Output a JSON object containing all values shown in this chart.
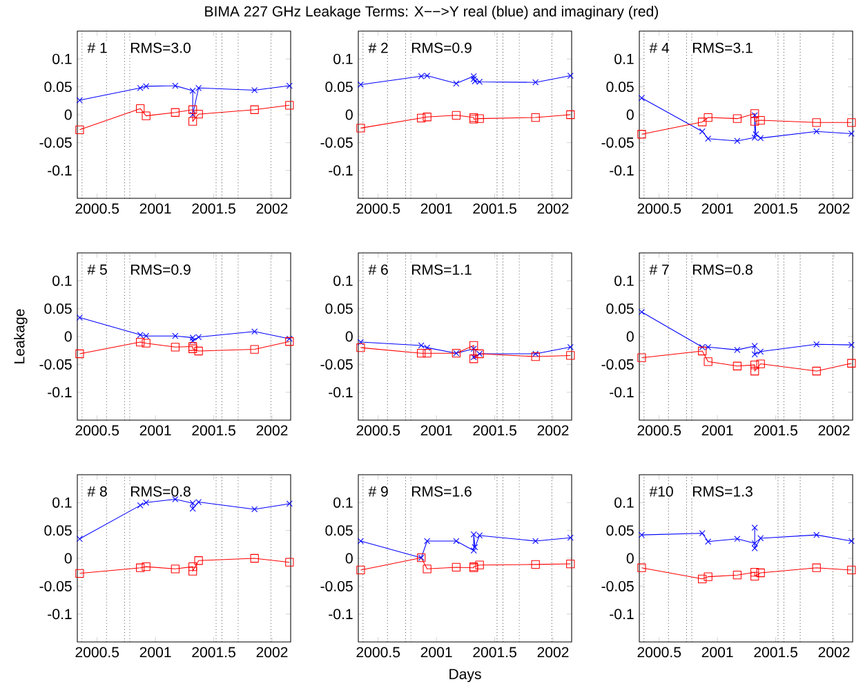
{
  "chart_data": [
    {
      "type": "line",
      "title": "BIMA 227 GHz Leakage Terms: X−−>Y real (blue) and imaginary (red)",
      "annotations": [
        "# 1",
        "RMS=3.0"
      ],
      "xlim": [
        2000.33,
        2002.16
      ],
      "ylim": [
        -0.15,
        0.15
      ],
      "xticks": [
        2000.5,
        2001,
        2001.5,
        2002
      ],
      "yticks": [
        -0.1,
        -0.05,
        0,
        0.05,
        0.1
      ],
      "line_style": "solid",
      "ref_lines": [
        {
          "axis": "x",
          "value": 2000.37,
          "color": "#000000",
          "line_style": "dotted"
        },
        {
          "axis": "x",
          "value": 2000.58,
          "color": "#000000",
          "line_style": "dotted"
        },
        {
          "axis": "x",
          "value": 2000.735,
          "color": "#000000",
          "line_style": "dotted"
        },
        {
          "axis": "x",
          "value": 2000.78,
          "color": "#000000",
          "line_style": "dotted"
        },
        {
          "axis": "x",
          "value": 2001.52,
          "color": "#000000",
          "line_style": "dotted"
        },
        {
          "axis": "x",
          "value": 2001.57,
          "color": "#000000",
          "line_style": "dotted"
        },
        {
          "axis": "x",
          "value": 2001.71,
          "color": "#000000",
          "line_style": "dotted"
        },
        {
          "axis": "x",
          "value": 2001.99,
          "color": "#000000",
          "line_style": "dotted"
        }
      ],
      "series": [
        {
          "color": "#0000ff",
          "marker": "cross",
          "x": [
            2000.35,
            2000.87,
            2000.92,
            2001.17,
            2001.32,
            2001.32,
            2001.37,
            2001.85,
            2002.15
          ],
          "values": [
            0.026,
            0.048,
            0.051,
            0.052,
            0.043,
            0.0,
            0.048,
            0.044,
            0.052
          ]
        },
        {
          "color": "#ff0000",
          "marker": "square",
          "x": [
            2000.35,
            2000.87,
            2000.92,
            2001.17,
            2001.32,
            2001.32,
            2001.37,
            2001.85,
            2002.15
          ],
          "values": [
            -0.027,
            0.011,
            -0.002,
            0.004,
            0.009,
            -0.012,
            0.001,
            0.009,
            0.017
          ]
        }
      ]
    },
    {
      "type": "line",
      "annotations": [
        "# 2",
        "RMS=0.9"
      ],
      "xlim": [
        2000.33,
        2002.16
      ],
      "ylim": [
        -0.15,
        0.15
      ],
      "xticks": [
        2000.5,
        2001,
        2001.5,
        2002
      ],
      "yticks": [
        -0.1,
        -0.05,
        0,
        0.05,
        0.1
      ],
      "line_style": "solid",
      "ref_lines": [
        {
          "axis": "x",
          "value": 2000.37,
          "color": "#000000",
          "line_style": "dotted"
        },
        {
          "axis": "x",
          "value": 2000.58,
          "color": "#000000",
          "line_style": "dotted"
        },
        {
          "axis": "x",
          "value": 2000.735,
          "color": "#000000",
          "line_style": "dotted"
        },
        {
          "axis": "x",
          "value": 2000.78,
          "color": "#000000",
          "line_style": "dotted"
        },
        {
          "axis": "x",
          "value": 2001.52,
          "color": "#000000",
          "line_style": "dotted"
        },
        {
          "axis": "x",
          "value": 2001.57,
          "color": "#000000",
          "line_style": "dotted"
        },
        {
          "axis": "x",
          "value": 2001.71,
          "color": "#000000",
          "line_style": "dotted"
        },
        {
          "axis": "x",
          "value": 2001.99,
          "color": "#000000",
          "line_style": "dotted"
        }
      ],
      "series": [
        {
          "color": "#0000ff",
          "marker": "cross",
          "x": [
            2000.35,
            2000.87,
            2000.92,
            2001.17,
            2001.32,
            2001.32,
            2001.33,
            2001.37,
            2001.85,
            2002.15
          ],
          "values": [
            0.054,
            0.069,
            0.07,
            0.056,
            0.069,
            0.064,
            0.06,
            0.059,
            0.058,
            0.07
          ]
        },
        {
          "color": "#ff0000",
          "marker": "square",
          "x": [
            2000.35,
            2000.87,
            2000.92,
            2001.17,
            2001.32,
            2001.32,
            2001.37,
            2001.85,
            2002.15
          ],
          "values": [
            -0.024,
            -0.006,
            -0.004,
            -0.001,
            -0.005,
            -0.008,
            -0.007,
            -0.005,
            0.0
          ]
        }
      ]
    },
    {
      "type": "line",
      "annotations": [
        "# 4",
        "RMS=3.1"
      ],
      "xlim": [
        2000.33,
        2002.16
      ],
      "ylim": [
        -0.15,
        0.15
      ],
      "xticks": [
        2000.5,
        2001,
        2001.5,
        2002
      ],
      "yticks": [
        -0.1,
        -0.05,
        0,
        0.05,
        0.1
      ],
      "line_style": "solid",
      "ref_lines": [
        {
          "axis": "x",
          "value": 2000.37,
          "color": "#000000",
          "line_style": "dotted"
        },
        {
          "axis": "x",
          "value": 2000.58,
          "color": "#000000",
          "line_style": "dotted"
        },
        {
          "axis": "x",
          "value": 2000.735,
          "color": "#000000",
          "line_style": "dotted"
        },
        {
          "axis": "x",
          "value": 2000.78,
          "color": "#000000",
          "line_style": "dotted"
        },
        {
          "axis": "x",
          "value": 2001.52,
          "color": "#000000",
          "line_style": "dotted"
        },
        {
          "axis": "x",
          "value": 2001.57,
          "color": "#000000",
          "line_style": "dotted"
        },
        {
          "axis": "x",
          "value": 2001.71,
          "color": "#000000",
          "line_style": "dotted"
        },
        {
          "axis": "x",
          "value": 2001.99,
          "color": "#000000",
          "line_style": "dotted"
        }
      ],
      "series": [
        {
          "color": "#0000ff",
          "marker": "cross",
          "x": [
            2000.35,
            2000.87,
            2000.92,
            2001.17,
            2001.32,
            2001.32,
            2001.33,
            2001.37,
            2001.85,
            2002.15
          ],
          "values": [
            0.03,
            -0.03,
            -0.043,
            -0.047,
            -0.041,
            -0.001,
            -0.035,
            -0.042,
            -0.03,
            -0.034
          ]
        },
        {
          "color": "#ff0000",
          "marker": "square",
          "x": [
            2000.35,
            2000.87,
            2000.92,
            2001.17,
            2001.32,
            2001.32,
            2001.37,
            2001.85,
            2002.15
          ],
          "values": [
            -0.035,
            -0.013,
            -0.005,
            -0.007,
            0.002,
            -0.012,
            -0.01,
            -0.014,
            -0.014
          ]
        }
      ]
    },
    {
      "type": "line",
      "ylabel": "Leakage",
      "annotations": [
        "# 5",
        "RMS=0.9"
      ],
      "xlim": [
        2000.33,
        2002.16
      ],
      "ylim": [
        -0.15,
        0.15
      ],
      "xticks": [
        2000.5,
        2001,
        2001.5,
        2002
      ],
      "yticks": [
        -0.1,
        -0.05,
        0,
        0.05,
        0.1
      ],
      "line_style": "solid",
      "ref_lines": [
        {
          "axis": "x",
          "value": 2000.37,
          "color": "#000000",
          "line_style": "dotted"
        },
        {
          "axis": "x",
          "value": 2000.58,
          "color": "#000000",
          "line_style": "dotted"
        },
        {
          "axis": "x",
          "value": 2000.735,
          "color": "#000000",
          "line_style": "dotted"
        },
        {
          "axis": "x",
          "value": 2000.78,
          "color": "#000000",
          "line_style": "dotted"
        },
        {
          "axis": "x",
          "value": 2001.52,
          "color": "#000000",
          "line_style": "dotted"
        },
        {
          "axis": "x",
          "value": 2001.57,
          "color": "#000000",
          "line_style": "dotted"
        },
        {
          "axis": "x",
          "value": 2001.71,
          "color": "#000000",
          "line_style": "dotted"
        },
        {
          "axis": "x",
          "value": 2001.99,
          "color": "#000000",
          "line_style": "dotted"
        }
      ],
      "series": [
        {
          "color": "#0000ff",
          "marker": "cross",
          "x": [
            2000.35,
            2000.87,
            2000.92,
            2001.17,
            2001.32,
            2001.32,
            2001.37,
            2001.85,
            2002.15
          ],
          "values": [
            0.034,
            0.003,
            0.001,
            0.001,
            -0.002,
            -0.008,
            -0.001,
            0.009,
            -0.004
          ]
        },
        {
          "color": "#ff0000",
          "marker": "square",
          "x": [
            2000.35,
            2000.87,
            2000.92,
            2001.17,
            2001.32,
            2001.32,
            2001.37,
            2001.85,
            2002.15
          ],
          "values": [
            -0.031,
            -0.01,
            -0.012,
            -0.019,
            -0.018,
            -0.022,
            -0.026,
            -0.023,
            -0.009
          ]
        }
      ]
    },
    {
      "type": "line",
      "annotations": [
        "# 6",
        "RMS=1.1"
      ],
      "xlim": [
        2000.33,
        2002.16
      ],
      "ylim": [
        -0.15,
        0.15
      ],
      "xticks": [
        2000.5,
        2001,
        2001.5,
        2002
      ],
      "yticks": [
        -0.1,
        -0.05,
        0,
        0.05,
        0.1
      ],
      "line_style": "solid",
      "ref_lines": [
        {
          "axis": "x",
          "value": 2000.37,
          "color": "#000000",
          "line_style": "dotted"
        },
        {
          "axis": "x",
          "value": 2000.58,
          "color": "#000000",
          "line_style": "dotted"
        },
        {
          "axis": "x",
          "value": 2000.735,
          "color": "#000000",
          "line_style": "dotted"
        },
        {
          "axis": "x",
          "value": 2000.78,
          "color": "#000000",
          "line_style": "dotted"
        },
        {
          "axis": "x",
          "value": 2001.52,
          "color": "#000000",
          "line_style": "dotted"
        },
        {
          "axis": "x",
          "value": 2001.57,
          "color": "#000000",
          "line_style": "dotted"
        },
        {
          "axis": "x",
          "value": 2001.71,
          "color": "#000000",
          "line_style": "dotted"
        },
        {
          "axis": "x",
          "value": 2001.99,
          "color": "#000000",
          "line_style": "dotted"
        }
      ],
      "series": [
        {
          "color": "#0000ff",
          "marker": "cross",
          "x": [
            2000.35,
            2000.87,
            2000.92,
            2001.17,
            2001.32,
            2001.32,
            2001.37,
            2001.85,
            2002.15
          ],
          "values": [
            -0.01,
            -0.016,
            -0.02,
            -0.03,
            -0.022,
            -0.037,
            -0.031,
            -0.031,
            -0.019
          ]
        },
        {
          "color": "#ff0000",
          "marker": "square",
          "x": [
            2000.35,
            2000.87,
            2000.92,
            2001.17,
            2001.32,
            2001.32,
            2001.37,
            2001.85,
            2002.15
          ],
          "values": [
            -0.02,
            -0.03,
            -0.03,
            -0.03,
            -0.016,
            -0.04,
            -0.031,
            -0.036,
            -0.034
          ]
        }
      ]
    },
    {
      "type": "line",
      "annotations": [
        "# 7",
        "RMS=0.8"
      ],
      "xlim": [
        2000.33,
        2002.16
      ],
      "ylim": [
        -0.15,
        0.15
      ],
      "xticks": [
        2000.5,
        2001,
        2001.5,
        2002
      ],
      "yticks": [
        -0.1,
        -0.05,
        0,
        0.05,
        0.1
      ],
      "line_style": "solid",
      "ref_lines": [
        {
          "axis": "x",
          "value": 2000.37,
          "color": "#000000",
          "line_style": "dotted"
        },
        {
          "axis": "x",
          "value": 2000.58,
          "color": "#000000",
          "line_style": "dotted"
        },
        {
          "axis": "x",
          "value": 2000.735,
          "color": "#000000",
          "line_style": "dotted"
        },
        {
          "axis": "x",
          "value": 2000.78,
          "color": "#000000",
          "line_style": "dotted"
        },
        {
          "axis": "x",
          "value": 2001.52,
          "color": "#000000",
          "line_style": "dotted"
        },
        {
          "axis": "x",
          "value": 2001.57,
          "color": "#000000",
          "line_style": "dotted"
        },
        {
          "axis": "x",
          "value": 2001.71,
          "color": "#000000",
          "line_style": "dotted"
        },
        {
          "axis": "x",
          "value": 2001.99,
          "color": "#000000",
          "line_style": "dotted"
        }
      ],
      "series": [
        {
          "color": "#0000ff",
          "marker": "cross",
          "x": [
            2000.35,
            2000.87,
            2000.92,
            2001.17,
            2001.32,
            2001.32,
            2001.37,
            2001.85,
            2002.15
          ],
          "values": [
            0.044,
            -0.019,
            -0.019,
            -0.024,
            -0.017,
            -0.032,
            -0.027,
            -0.014,
            -0.015
          ]
        },
        {
          "color": "#ff0000",
          "marker": "square",
          "x": [
            2000.35,
            2000.87,
            2000.92,
            2001.17,
            2001.32,
            2001.32,
            2001.37,
            2001.85,
            2002.15
          ],
          "values": [
            -0.038,
            -0.026,
            -0.045,
            -0.053,
            -0.051,
            -0.062,
            -0.049,
            -0.062,
            -0.048
          ]
        }
      ]
    },
    {
      "type": "line",
      "annotations": [
        "# 8",
        "RMS=0.8"
      ],
      "xlim": [
        2000.33,
        2002.16
      ],
      "ylim": [
        -0.15,
        0.15
      ],
      "xticks": [
        2000.5,
        2001,
        2001.5,
        2002
      ],
      "yticks": [
        -0.1,
        -0.05,
        0,
        0.05,
        0.1
      ],
      "line_style": "solid",
      "ref_lines": [
        {
          "axis": "x",
          "value": 2000.37,
          "color": "#000000",
          "line_style": "dotted"
        },
        {
          "axis": "x",
          "value": 2000.58,
          "color": "#000000",
          "line_style": "dotted"
        },
        {
          "axis": "x",
          "value": 2000.735,
          "color": "#000000",
          "line_style": "dotted"
        },
        {
          "axis": "x",
          "value": 2000.78,
          "color": "#000000",
          "line_style": "dotted"
        },
        {
          "axis": "x",
          "value": 2001.52,
          "color": "#000000",
          "line_style": "dotted"
        },
        {
          "axis": "x",
          "value": 2001.57,
          "color": "#000000",
          "line_style": "dotted"
        },
        {
          "axis": "x",
          "value": 2001.71,
          "color": "#000000",
          "line_style": "dotted"
        },
        {
          "axis": "x",
          "value": 2001.99,
          "color": "#000000",
          "line_style": "dotted"
        }
      ],
      "series": [
        {
          "color": "#0000ff",
          "marker": "cross",
          "x": [
            2000.35,
            2000.87,
            2000.92,
            2001.17,
            2001.32,
            2001.32,
            2001.37,
            2001.85,
            2002.15
          ],
          "values": [
            0.035,
            0.095,
            0.1,
            0.106,
            0.099,
            0.089,
            0.101,
            0.088,
            0.098
          ]
        },
        {
          "color": "#ff0000",
          "marker": "square",
          "x": [
            2000.35,
            2000.87,
            2000.92,
            2001.17,
            2001.32,
            2001.32,
            2001.37,
            2001.85,
            2002.15
          ],
          "values": [
            -0.027,
            -0.017,
            -0.015,
            -0.019,
            -0.015,
            -0.023,
            -0.004,
            0.0,
            -0.007
          ]
        }
      ]
    },
    {
      "type": "line",
      "xlabel": "Days",
      "annotations": [
        "# 9",
        "RMS=1.6"
      ],
      "xlim": [
        2000.33,
        2002.16
      ],
      "ylim": [
        -0.15,
        0.15
      ],
      "xticks": [
        2000.5,
        2001,
        2001.5,
        2002
      ],
      "yticks": [
        -0.1,
        -0.05,
        0,
        0.05,
        0.1
      ],
      "line_style": "solid",
      "ref_lines": [
        {
          "axis": "x",
          "value": 2000.37,
          "color": "#000000",
          "line_style": "dotted"
        },
        {
          "axis": "x",
          "value": 2000.58,
          "color": "#000000",
          "line_style": "dotted"
        },
        {
          "axis": "x",
          "value": 2000.735,
          "color": "#000000",
          "line_style": "dotted"
        },
        {
          "axis": "x",
          "value": 2000.78,
          "color": "#000000",
          "line_style": "dotted"
        },
        {
          "axis": "x",
          "value": 2001.52,
          "color": "#000000",
          "line_style": "dotted"
        },
        {
          "axis": "x",
          "value": 2001.57,
          "color": "#000000",
          "line_style": "dotted"
        },
        {
          "axis": "x",
          "value": 2001.71,
          "color": "#000000",
          "line_style": "dotted"
        },
        {
          "axis": "x",
          "value": 2001.99,
          "color": "#000000",
          "line_style": "dotted"
        }
      ],
      "series": [
        {
          "color": "#0000ff",
          "marker": "cross",
          "x": [
            2000.35,
            2000.87,
            2000.92,
            2001.17,
            2001.32,
            2001.32,
            2001.33,
            2001.37,
            2001.85,
            2002.15
          ],
          "values": [
            0.031,
            0.001,
            0.031,
            0.031,
            0.014,
            0.043,
            0.02,
            0.041,
            0.031,
            0.037
          ]
        },
        {
          "color": "#ff0000",
          "marker": "square",
          "x": [
            2000.35,
            2000.87,
            2000.92,
            2001.17,
            2001.32,
            2001.32,
            2001.37,
            2001.85,
            2002.15
          ],
          "values": [
            -0.021,
            0.001,
            -0.019,
            -0.016,
            -0.017,
            -0.015,
            -0.012,
            -0.011,
            -0.01
          ]
        }
      ]
    },
    {
      "type": "line",
      "annotations": [
        "#10",
        "RMS=1.3"
      ],
      "xlim": [
        2000.33,
        2002.16
      ],
      "ylim": [
        -0.15,
        0.15
      ],
      "xticks": [
        2000.5,
        2001,
        2001.5,
        2002
      ],
      "yticks": [
        -0.1,
        -0.05,
        0,
        0.05,
        0.1
      ],
      "line_style": "solid",
      "ref_lines": [
        {
          "axis": "x",
          "value": 2000.37,
          "color": "#000000",
          "line_style": "dotted"
        },
        {
          "axis": "x",
          "value": 2000.58,
          "color": "#000000",
          "line_style": "dotted"
        },
        {
          "axis": "x",
          "value": 2000.735,
          "color": "#000000",
          "line_style": "dotted"
        },
        {
          "axis": "x",
          "value": 2000.78,
          "color": "#000000",
          "line_style": "dotted"
        },
        {
          "axis": "x",
          "value": 2001.52,
          "color": "#000000",
          "line_style": "dotted"
        },
        {
          "axis": "x",
          "value": 2001.57,
          "color": "#000000",
          "line_style": "dotted"
        },
        {
          "axis": "x",
          "value": 2001.71,
          "color": "#000000",
          "line_style": "dotted"
        },
        {
          "axis": "x",
          "value": 2001.99,
          "color": "#000000",
          "line_style": "dotted"
        }
      ],
      "series": [
        {
          "color": "#0000ff",
          "marker": "cross",
          "x": [
            2000.35,
            2000.87,
            2000.92,
            2001.17,
            2001.32,
            2001.32,
            2001.32,
            2001.37,
            2001.85,
            2002.15
          ],
          "values": [
            0.042,
            0.045,
            0.03,
            0.035,
            0.027,
            0.055,
            0.018,
            0.036,
            0.042,
            0.031
          ]
        },
        {
          "color": "#ff0000",
          "marker": "square",
          "x": [
            2000.35,
            2000.87,
            2000.92,
            2001.17,
            2001.32,
            2001.32,
            2001.37,
            2001.85,
            2002.15
          ],
          "values": [
            -0.017,
            -0.037,
            -0.033,
            -0.03,
            -0.025,
            -0.032,
            -0.026,
            -0.017,
            -0.021
          ]
        }
      ]
    }
  ]
}
